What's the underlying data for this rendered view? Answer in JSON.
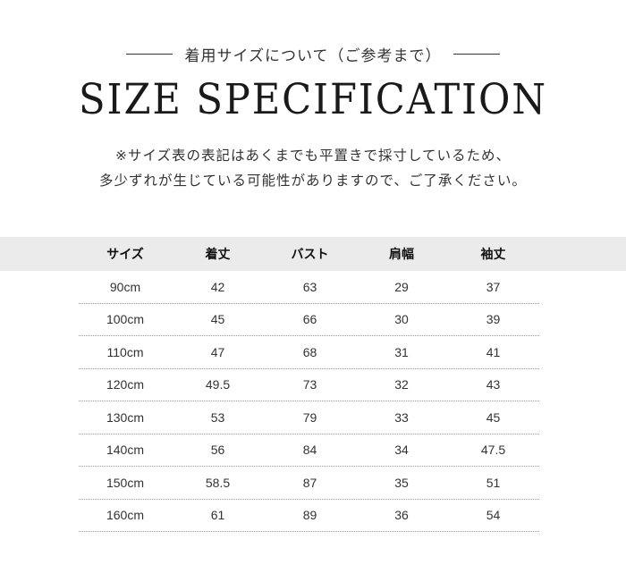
{
  "subtitle": "着用サイズについて（ご参考まで）",
  "title": "SIZE SPECIFICATION",
  "note": [
    "※サイズ表の表記はあくまでも平置きで採寸しているため、",
    "多少ずれが生じている可能性がありますので、ご了承ください。"
  ],
  "table": {
    "headers": [
      "サイズ",
      "着丈",
      "バスト",
      "肩幅",
      "袖丈"
    ],
    "rows": [
      [
        "90cm",
        "42",
        "63",
        "29",
        "37"
      ],
      [
        "100cm",
        "45",
        "66",
        "30",
        "39"
      ],
      [
        "110cm",
        "47",
        "68",
        "31",
        "41"
      ],
      [
        "120cm",
        "49.5",
        "73",
        "32",
        "43"
      ],
      [
        "130cm",
        "53",
        "79",
        "33",
        "45"
      ],
      [
        "140cm",
        "56",
        "84",
        "34",
        "47.5"
      ],
      [
        "150cm",
        "58.5",
        "87",
        "35",
        "51"
      ],
      [
        "160cm",
        "61",
        "89",
        "36",
        "54"
      ]
    ]
  }
}
